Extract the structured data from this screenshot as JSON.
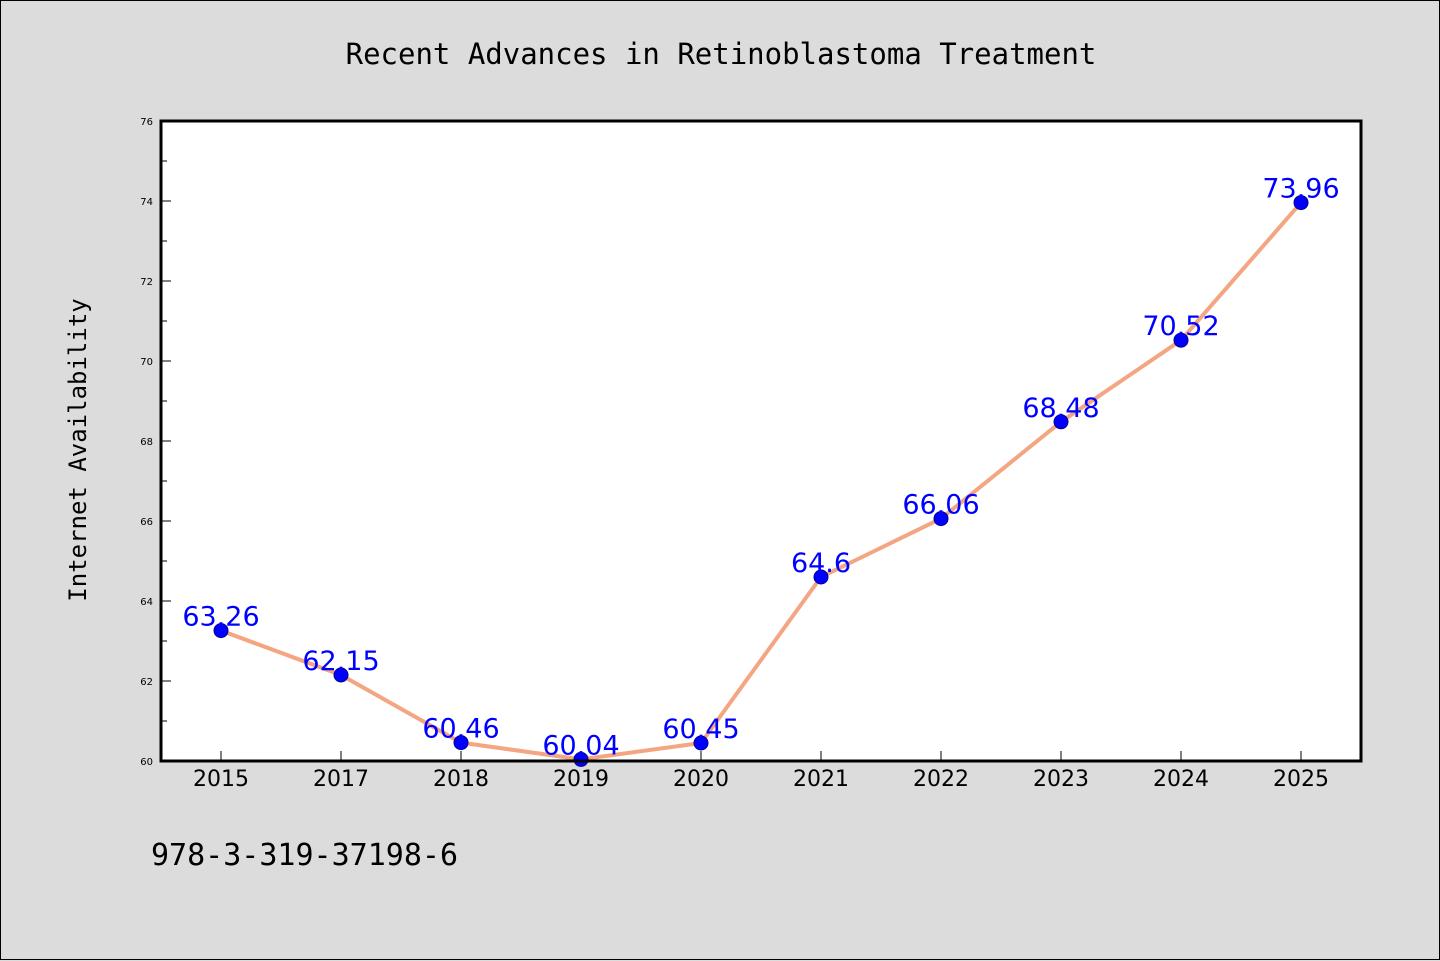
{
  "chart_data": {
    "type": "line",
    "title": "Recent Advances in Retinoblastoma Treatment",
    "xlabel": "",
    "ylabel": "Internet Availability",
    "categories": [
      "2015",
      "2017",
      "2018",
      "2019",
      "2020",
      "2021",
      "2022",
      "2023",
      "2024",
      "2025"
    ],
    "values": [
      63.26,
      62.15,
      60.46,
      60.04,
      60.45,
      64.6,
      66.06,
      68.48,
      70.52,
      73.96
    ],
    "data_labels": [
      "63.26",
      "62.15",
      "60.46",
      "60.04",
      "60.45",
      "64.6",
      "66.06",
      "68.48",
      "70.52",
      "73.96"
    ],
    "ylim": [
      60,
      76
    ],
    "yticks": [
      "60",
      "62",
      "64",
      "66",
      "68",
      "70",
      "72",
      "74",
      "76"
    ],
    "grid": false,
    "legend": "none",
    "colors": {
      "line": "#f4a582",
      "marker": "#0000ff",
      "marker_edge": "#00008b",
      "data_label": "#0000ff",
      "background": "#dcdcdc",
      "plot_area": "#ffffff"
    }
  },
  "footnote": "978-3-319-37198-6"
}
